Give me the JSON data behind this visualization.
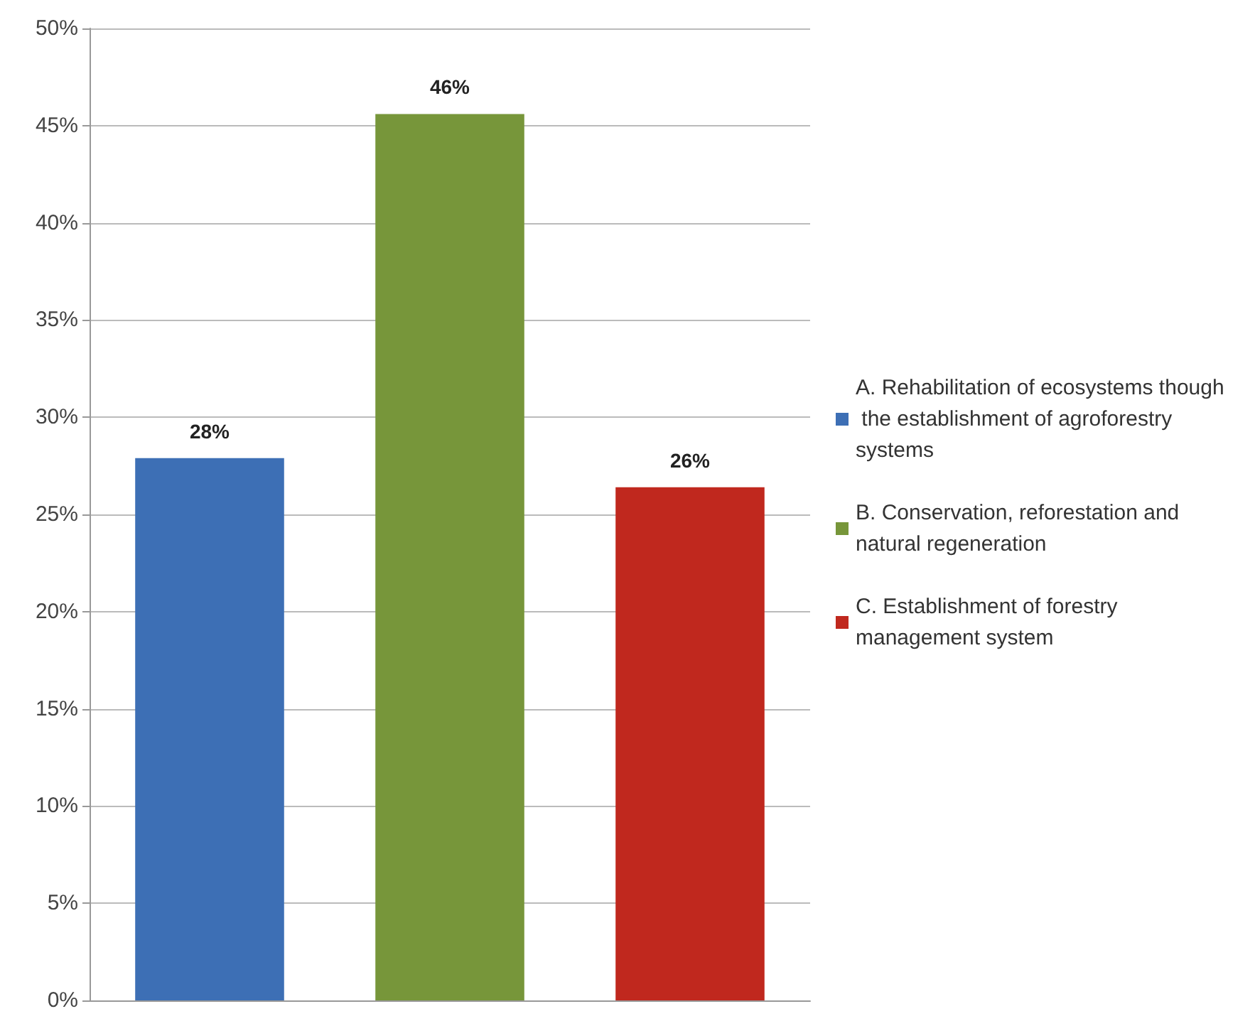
{
  "chart_data": {
    "type": "bar",
    "categories": [
      null,
      null,
      null
    ],
    "series": [
      {
        "name": "A. Rehabilitation of ecosystems though the establishment of agroforestry systems",
        "color": "#3d6fb5",
        "values": [
          27.9,
          null,
          null
        ],
        "value_labels": [
          "28%",
          null,
          null
        ]
      },
      {
        "name": "B. Conservation, reforestation and natural regeneration",
        "color": "#77963a",
        "values": [
          null,
          45.6,
          null
        ],
        "value_labels": [
          null,
          "46%",
          null
        ]
      },
      {
        "name": "C. Establishment of forestry management system",
        "color": "#c0281e",
        "values": [
          null,
          null,
          26.4
        ],
        "value_labels": [
          null,
          null,
          "26%"
        ]
      }
    ],
    "ylim": [
      0,
      50
    ],
    "yticks": [
      {
        "value": 0,
        "label": "0%"
      },
      {
        "value": 5,
        "label": "5%"
      },
      {
        "value": 10,
        "label": "10%"
      },
      {
        "value": 15,
        "label": "15%"
      },
      {
        "value": 20,
        "label": "20%"
      },
      {
        "value": 25,
        "label": "25%"
      },
      {
        "value": 30,
        "label": "30%"
      },
      {
        "value": 35,
        "label": "35%"
      },
      {
        "value": 40,
        "label": "40%"
      },
      {
        "value": 45,
        "label": "45%"
      },
      {
        "value": 50,
        "label": "50%"
      }
    ],
    "grid": "y",
    "legend": "right"
  }
}
